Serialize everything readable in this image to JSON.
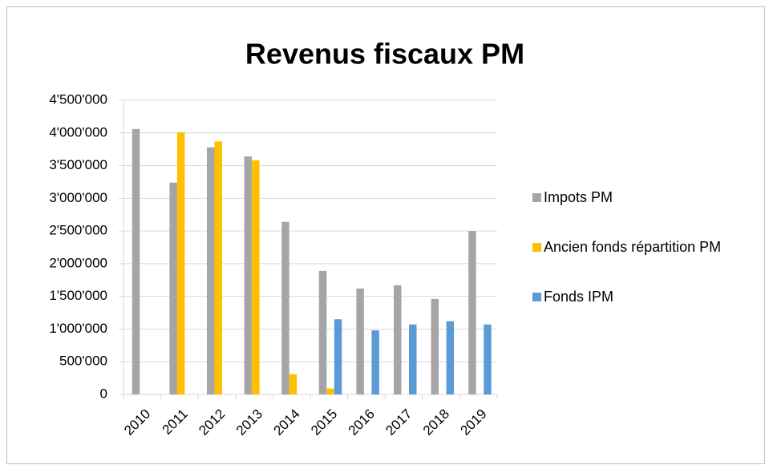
{
  "chart_data": {
    "type": "bar",
    "title": "Revenus fiscaux PM",
    "categories": [
      "2010",
      "2011",
      "2012",
      "2013",
      "2014",
      "2015",
      "2016",
      "2017",
      "2018",
      "2019"
    ],
    "series": [
      {
        "name": "Impots PM",
        "color": "#a5a5a5",
        "values": [
          4060000,
          3240000,
          3780000,
          3640000,
          2640000,
          1890000,
          1620000,
          1670000,
          1460000,
          2500000
        ]
      },
      {
        "name": "Ancien fonds répartition PM",
        "color": "#ffc000",
        "values": [
          null,
          4010000,
          3870000,
          3580000,
          310000,
          90000,
          null,
          null,
          null,
          null
        ]
      },
      {
        "name": "Fonds IPM",
        "color": "#5b9bd5",
        "values": [
          null,
          null,
          null,
          null,
          null,
          1150000,
          980000,
          1070000,
          1120000,
          1070000
        ]
      }
    ],
    "ylim": [
      0,
      4500000
    ],
    "yticks": [
      0,
      {
        "value": 500000,
        "label": "500'000"
      },
      {
        "value": 1000000,
        "label": "1'000'000"
      },
      {
        "value": 1500000,
        "label": "1'500'000"
      },
      {
        "value": 2000000,
        "label": "2'000'000"
      },
      {
        "value": 2500000,
        "label": "2'500'000"
      },
      {
        "value": 3000000,
        "label": "3'000'000"
      },
      {
        "value": 3500000,
        "label": "3'500'000"
      },
      {
        "value": 4000000,
        "label": "4'000'000"
      },
      {
        "value": 4500000,
        "label": "4'500'000"
      }
    ],
    "grid": true
  }
}
